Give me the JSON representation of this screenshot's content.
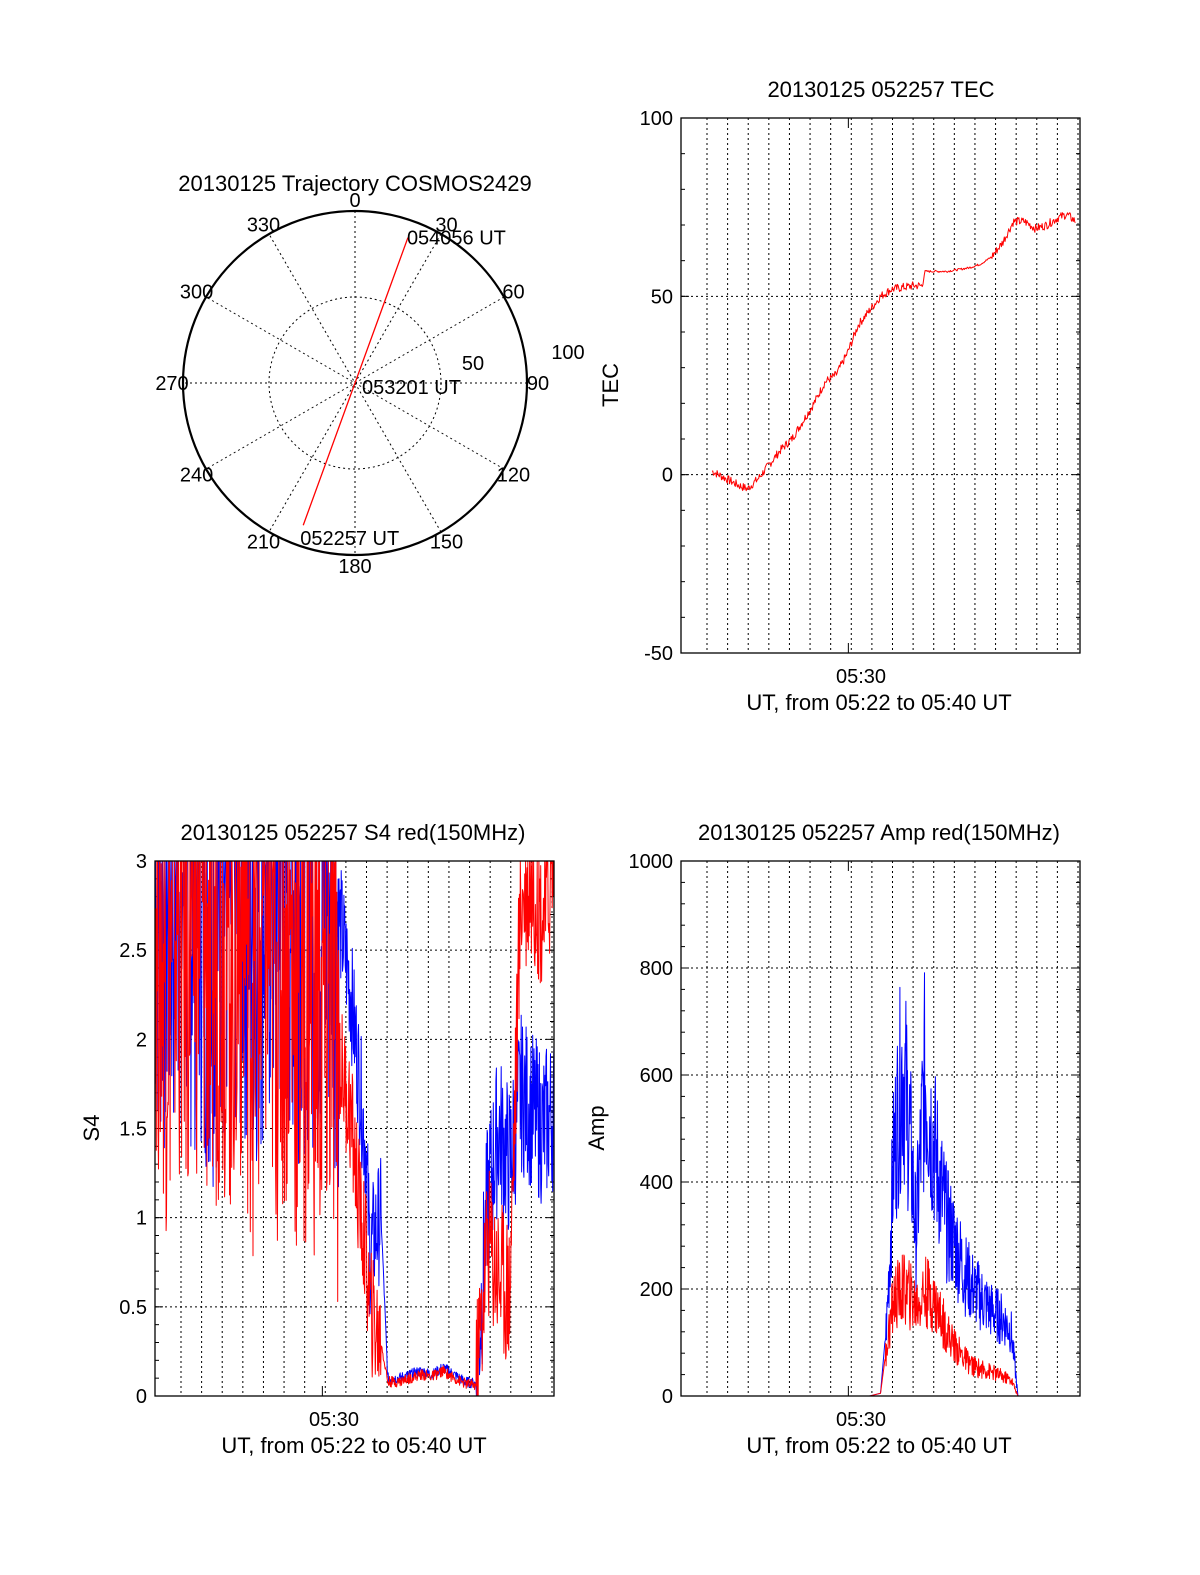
{
  "chart_data": [
    {
      "type": "polar",
      "title": "20130125 Trajectory COSMOS2429",
      "angle_labels": [
        "0",
        "30",
        "60",
        "90",
        "120",
        "150",
        "180",
        "210",
        "240",
        "270",
        "300",
        "330"
      ],
      "radial_labels": [
        "50",
        "100"
      ],
      "rmax": 100,
      "trajectory": {
        "color": "#ff0000",
        "start": {
          "azimuth": 200,
          "radius": 88,
          "label": "052257 UT"
        },
        "middle": {
          "azimuth": 20,
          "radius": 0,
          "label": "053201 UT"
        },
        "end": {
          "azimuth": 20,
          "radius": 90,
          "label": "054056 UT"
        }
      }
    },
    {
      "type": "line",
      "title": "20130125 052257 TEC",
      "ylabel": "TEC",
      "xlabel": "UT, from 05:22 to 05:40 UT",
      "x_tick_label": "05:30",
      "x_tick_value": 7.55,
      "xlim": [
        0,
        18
      ],
      "ylim": [
        -50,
        100
      ],
      "yticks": [
        "-50",
        "0",
        "50",
        "100"
      ],
      "ytick_values": [
        -50,
        0,
        50,
        100
      ],
      "series": [
        {
          "color": "#ff0000",
          "x": [
            1.4,
            2.0,
            2.6,
            3.0,
            3.5,
            4.0,
            4.5,
            5.0,
            5.5,
            6.0,
            6.5,
            7.0,
            7.5,
            8.0,
            8.5,
            9.0,
            9.5,
            10.0,
            10.5,
            10.9,
            11.0,
            11.5,
            12.0,
            12.5,
            13.0,
            13.5,
            14.0,
            14.5,
            15.0,
            15.5,
            16.0,
            16.5,
            17.0,
            17.4,
            17.8
          ],
          "y": [
            1,
            -1,
            -3,
            -4,
            -1,
            3,
            7,
            10,
            15,
            20,
            26,
            28,
            34,
            42,
            46,
            50,
            52,
            52.5,
            53,
            53,
            57,
            57,
            57,
            57.5,
            58,
            59,
            61,
            65,
            71,
            71,
            69,
            70,
            72,
            73,
            71
          ]
        }
      ]
    },
    {
      "type": "line",
      "title": "20130125 052257 S4 red(150MHz)",
      "ylabel": "S4",
      "xlabel": "UT, from 05:22 to 05:40 UT",
      "x_tick_label": "05:30",
      "x_tick_value": 7.55,
      "xlim": [
        0,
        18
      ],
      "ylim": [
        0,
        3
      ],
      "yticks": [
        "0",
        "0.5",
        "1",
        "1.5",
        "2",
        "2.5",
        "3"
      ],
      "ytick_values": [
        0,
        0.5,
        1,
        1.5,
        2,
        2.5,
        3
      ],
      "series": [
        {
          "color": "#0000ff",
          "x": [
            0,
            0.5,
            1.0,
            1.5,
            2.0,
            2.5,
            3.0,
            3.5,
            4.0,
            4.5,
            5.0,
            5.5,
            6.0,
            6.5,
            7.0,
            7.5,
            8.0,
            8.3,
            8.8,
            9.2,
            9.5,
            9.7,
            9.9,
            10.2,
            10.5,
            11.0,
            11.5,
            12.0,
            12.5,
            13.0,
            13.5,
            14.0,
            14.5,
            15.0,
            15.5,
            16.0,
            16.5,
            17.0,
            17.5,
            18.0
          ],
          "y": [
            3.0,
            2.8,
            3.0,
            2.9,
            3.0,
            2.7,
            3.0,
            2.9,
            3.0,
            2.8,
            3.0,
            2.9,
            3.0,
            2.9,
            3.0,
            2.8,
            3.0,
            2.7,
            2.3,
            1.8,
            1.4,
            0.8,
            0.9,
            1.0,
            0.1,
            0.1,
            0.12,
            0.14,
            0.12,
            0.16,
            0.12,
            0.08,
            0.07,
            1.1,
            1.5,
            1.3,
            1.7,
            1.6,
            1.5,
            1.6
          ]
        },
        {
          "color": "#ff0000",
          "x": [
            0,
            0.5,
            1.0,
            1.5,
            2.0,
            2.5,
            3.0,
            3.5,
            4.0,
            4.5,
            5.0,
            5.5,
            6.0,
            6.5,
            7.0,
            7.5,
            8.0,
            8.3,
            8.8,
            9.2,
            9.5,
            9.7,
            9.9,
            10.2,
            10.5,
            11.0,
            11.5,
            12.0,
            12.5,
            13.0,
            13.5,
            14.0,
            14.5,
            15.0,
            15.5,
            16.0,
            16.5,
            17.0,
            17.5,
            18.0
          ],
          "y": [
            2.9,
            2.5,
            2.8,
            2.6,
            2.9,
            2.4,
            2.8,
            2.5,
            2.8,
            2.3,
            2.7,
            2.4,
            2.6,
            2.2,
            2.5,
            2.1,
            2.3,
            1.9,
            1.6,
            1.1,
            0.8,
            0.5,
            0.4,
            0.3,
            0.08,
            0.08,
            0.1,
            0.12,
            0.11,
            0.14,
            0.1,
            0.07,
            0.06,
            0.9,
            0.7,
            0.6,
            2.8,
            2.9,
            2.7,
            3.0
          ]
        }
      ]
    },
    {
      "type": "line",
      "title": "20130125 052257 Amp red(150MHz)",
      "ylabel": "Amp",
      "xlabel": "UT, from 05:22 to 05:40 UT",
      "x_tick_label": "05:30",
      "x_tick_value": 7.55,
      "xlim": [
        0,
        18
      ],
      "ylim": [
        0,
        1000
      ],
      "yticks": [
        "0",
        "200",
        "400",
        "600",
        "800",
        "1000"
      ],
      "ytick_values": [
        0,
        200,
        400,
        600,
        800,
        1000
      ],
      "series": [
        {
          "color": "#0000ff",
          "x": [
            1.4,
            4.0,
            8.5,
            9.0,
            9.3,
            9.6,
            10.0,
            10.3,
            10.6,
            11.0,
            11.3,
            11.6,
            12.0,
            12.4,
            12.8,
            13.2,
            13.6,
            14.0,
            14.3,
            14.6,
            14.9,
            15.2,
            17.0,
            17.8
          ],
          "y": [
            0,
            0,
            0,
            5,
            150,
            450,
            620,
            500,
            300,
            600,
            500,
            420,
            320,
            280,
            230,
            200,
            180,
            160,
            150,
            140,
            120,
            0,
            0,
            0
          ]
        },
        {
          "color": "#ff0000",
          "x": [
            1.4,
            4.0,
            8.5,
            9.0,
            9.3,
            9.6,
            10.0,
            10.3,
            10.6,
            11.0,
            11.3,
            11.6,
            12.0,
            12.4,
            12.8,
            13.2,
            13.6,
            14.0,
            14.3,
            14.6,
            14.9,
            15.2,
            17.0,
            17.8
          ],
          "y": [
            0,
            0,
            0,
            5,
            100,
            180,
            200,
            190,
            170,
            195,
            185,
            160,
            120,
            90,
            70,
            55,
            50,
            45,
            40,
            35,
            30,
            0,
            0,
            0
          ]
        }
      ]
    }
  ]
}
